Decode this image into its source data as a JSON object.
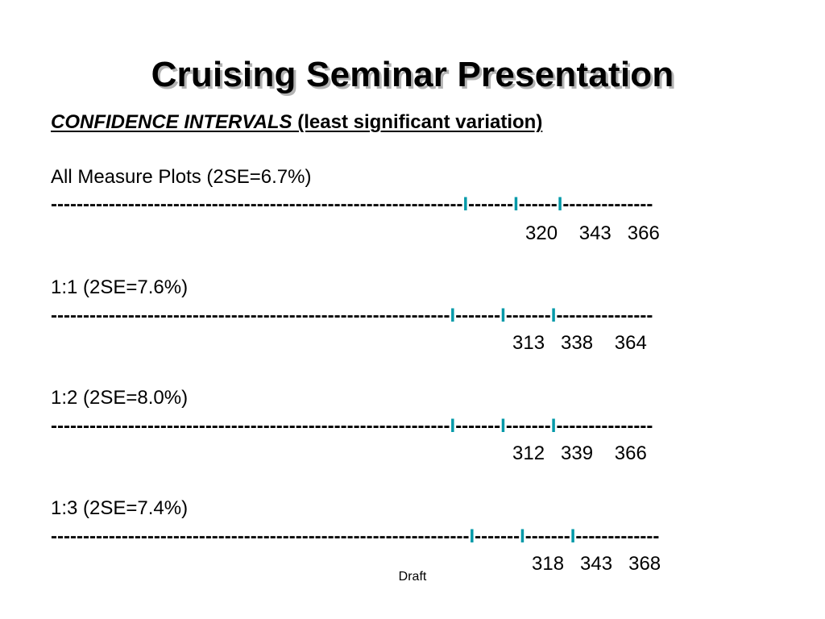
{
  "slide": {
    "title": "Cruising Seminar Presentation",
    "subtitle_italic": "CONFIDENCE INTERVALS",
    "subtitle_rest": " (least significant variation)",
    "footer": "Draft"
  },
  "colors": {
    "interval_marks": "#0099a8",
    "text": "#000000",
    "background": "#ffffff"
  },
  "intervals": [
    {
      "label": "All Measure Plots (2SE=6.7%)",
      "left_dashes": "----------------------------------------------------------------",
      "mark1": "I",
      "mid1": "-------",
      "mark2": "I",
      "mid2": "------",
      "mark3": "I",
      "right_dashes": "--------------",
      "values": "320    343   366"
    },
    {
      "label": "1:1 (2SE=7.6%)",
      "left_dashes": "--------------------------------------------------------------",
      "mark1": "I",
      "mid1": "-------",
      "mark2": "I",
      "mid2": "-------",
      "mark3": "I",
      "right_dashes": "---------------",
      "values": "313   338    364"
    },
    {
      "label": "1:2 (2SE=8.0%)",
      "left_dashes": "--------------------------------------------------------------",
      "mark1": "I",
      "mid1": "-------",
      "mark2": "I",
      "mid2": "-------",
      "mark3": "I",
      "right_dashes": "---------------",
      "values": "312   339    366"
    },
    {
      "label": "1:3 (2SE=7.4%)",
      "left_dashes": "-----------------------------------------------------------------",
      "mark1": "I",
      "mid1": "-------",
      "mark2": "I",
      "mid2": "-------",
      "mark3": "I",
      "right_dashes": "-------------",
      "values": "318   343   368"
    }
  ]
}
